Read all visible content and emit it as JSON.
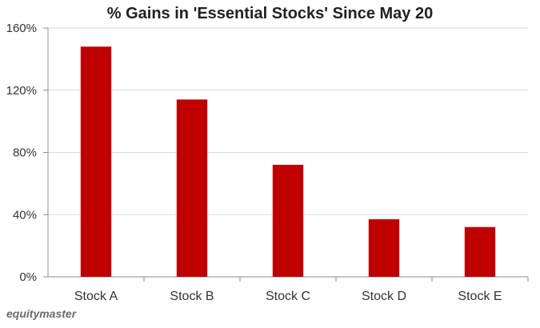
{
  "chart_data": {
    "type": "bar",
    "title": "% Gains in 'Essential Stocks' Since May 20",
    "categories": [
      "Stock A",
      "Stock B",
      "Stock C",
      "Stock D",
      "Stock E"
    ],
    "series": [
      {
        "values": [
          148,
          114,
          72,
          37,
          32
        ]
      }
    ],
    "xlabel": "",
    "ylabel": "",
    "ylim": [
      0,
      160
    ],
    "yticks": [
      0,
      40,
      80,
      120,
      160
    ],
    "ytick_labels": [
      "0%",
      "40%",
      "80%",
      "120%",
      "160%"
    ],
    "grid": "horizontal",
    "legend": "none",
    "bar_color": "#c00000"
  },
  "branding": {
    "watermark": "equitymaster"
  }
}
